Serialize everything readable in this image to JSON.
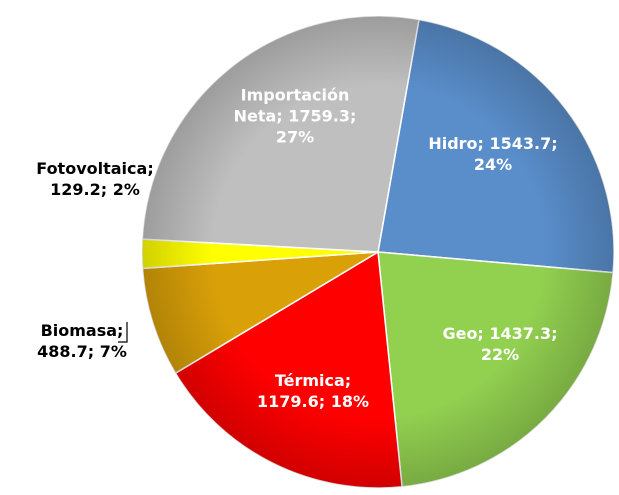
{
  "chart_data": {
    "type": "pie",
    "categories": [
      "Hidro",
      "Geo",
      "Térmica",
      "Biomasa",
      "Fotovoltaica",
      "Importación Neta"
    ],
    "values": [
      1543.7,
      1437.3,
      1179.6,
      488.7,
      129.2,
      1759.3
    ],
    "value_labels": [
      [
        "Hidro; 1543.7;",
        "24%"
      ],
      [
        "Geo; 1437.3;",
        "22%"
      ],
      [
        "Térmica;",
        "1179.6; 18%"
      ],
      [
        "Biomasa;",
        "488.7; 7%"
      ],
      [
        "Fotovoltaica;",
        "129.2; 2%"
      ],
      [
        "Importación",
        "Neta; 1759.3;",
        "27%"
      ]
    ],
    "colors": [
      "#5a8ecb",
      "#92d050",
      "#ff0000",
      "#d9a008",
      "#ffff00",
      "#bfbfbf"
    ]
  }
}
